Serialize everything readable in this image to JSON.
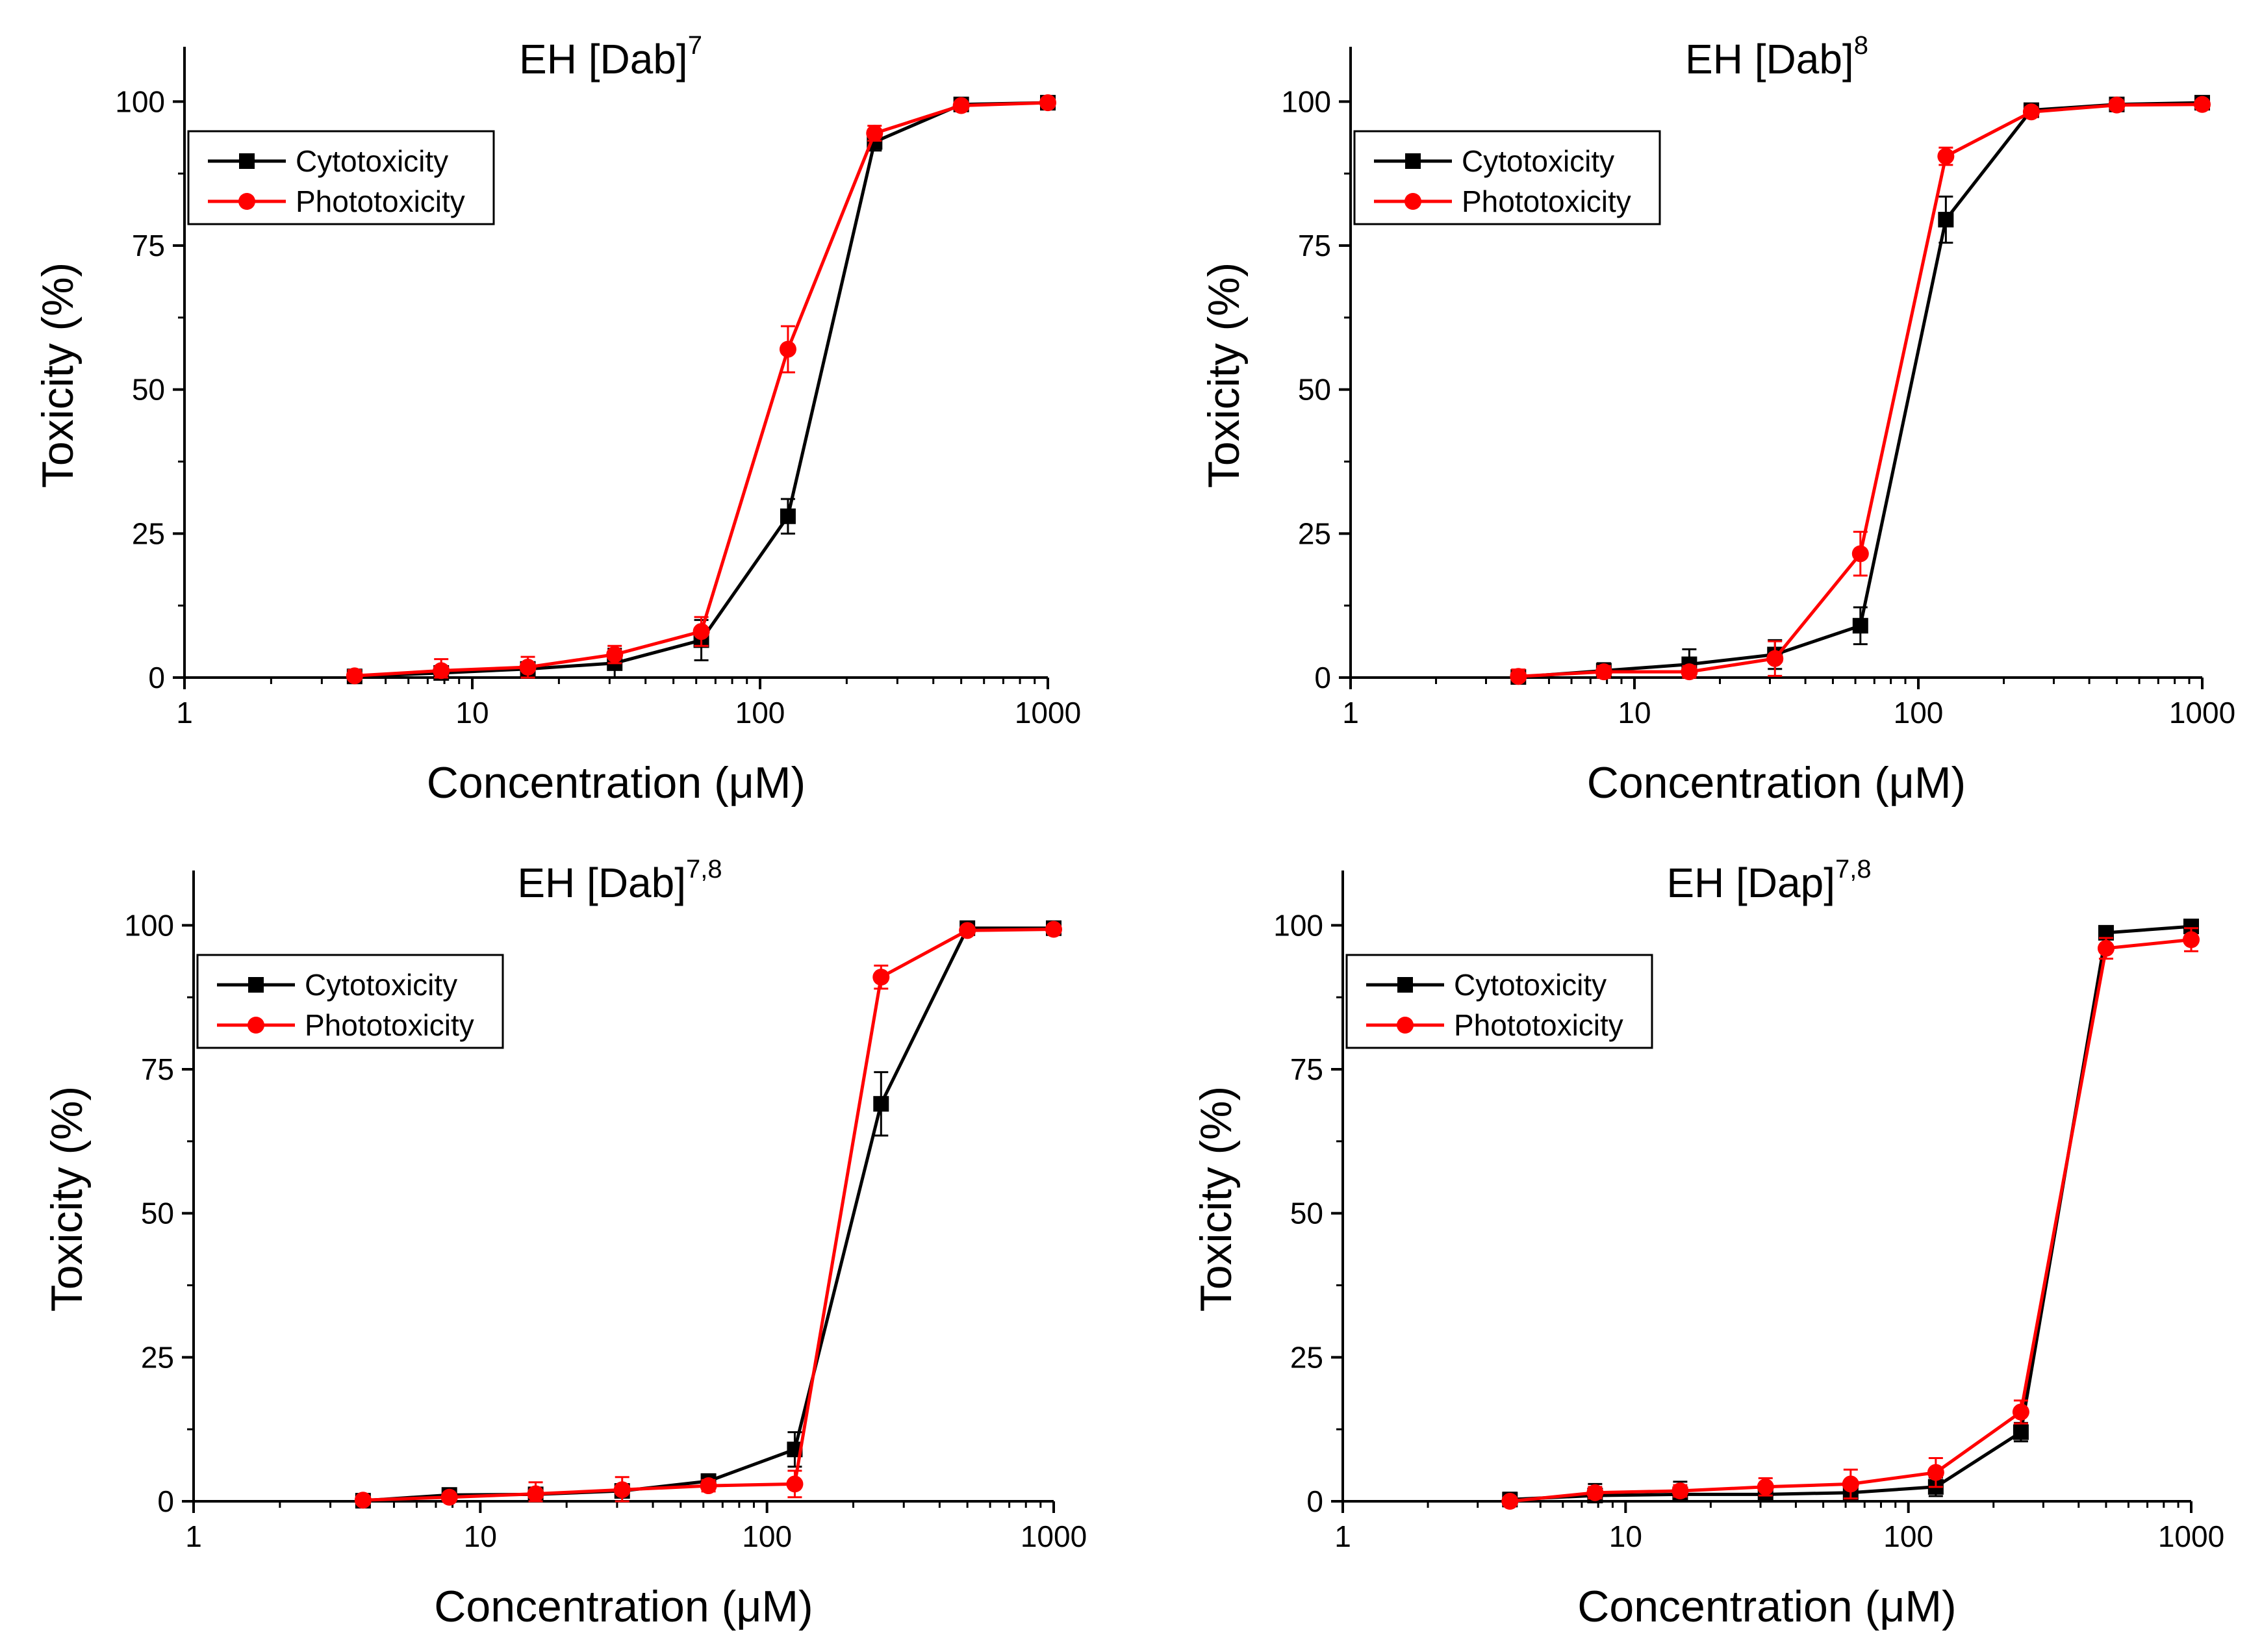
{
  "figure": {
    "colors": {
      "cytotoxicity": "#000000",
      "phototoxicity": "#ff0000",
      "axis": "#000000",
      "background": "#ffffff"
    }
  },
  "chart_data": [
    {
      "type": "line",
      "title_main": "EH [Dab]",
      "title_sup": "7",
      "xlabel": "Concentration (μM)",
      "ylabel": "Toxicity (%)",
      "xscale": "log",
      "xlim": [
        1,
        1000
      ],
      "ylim": [
        0,
        105
      ],
      "xticks": [
        1,
        10,
        100,
        1000
      ],
      "xtick_labels": [
        "1",
        "10",
        "100",
        "1000"
      ],
      "yticks": [
        0,
        25,
        50,
        75,
        100
      ],
      "ytick_labels": [
        "0",
        "25",
        "50",
        "75",
        "100"
      ],
      "grid": false,
      "legend_position": "upper-left",
      "x": [
        3.9,
        7.8,
        15.6,
        31.25,
        62.5,
        125,
        250,
        500,
        1000
      ],
      "series": [
        {
          "name": "Cytotoxicity",
          "marker": "square",
          "color": "#000000",
          "values": [
            0.2,
            0.8,
            1.5,
            2.5,
            6.5,
            28,
            93,
            99.5,
            99.8
          ],
          "errors": [
            0.6,
            0.8,
            0.8,
            2.5,
            3.5,
            3.0,
            1.5,
            0.5,
            0.3
          ]
        },
        {
          "name": "Phototoxicity",
          "marker": "circle",
          "color": "#ff0000",
          "values": [
            0.3,
            1.2,
            1.8,
            4.0,
            8.0,
            57,
            94.5,
            99.3,
            99.8
          ],
          "errors": [
            1.0,
            2.0,
            1.8,
            1.5,
            2.5,
            4.0,
            1.3,
            0.5,
            0.3
          ]
        }
      ]
    },
    {
      "type": "line",
      "title_main": "EH [Dab]",
      "title_sup": "8",
      "xlabel": "Concentration (μM)",
      "ylabel": "Toxicity (%)",
      "xscale": "log",
      "xlim": [
        1,
        1000
      ],
      "ylim": [
        0,
        105
      ],
      "xticks": [
        1,
        10,
        100,
        1000
      ],
      "xtick_labels": [
        "1",
        "10",
        "100",
        "1000"
      ],
      "yticks": [
        0,
        25,
        50,
        75,
        100
      ],
      "ytick_labels": [
        "0",
        "25",
        "50",
        "75",
        "100"
      ],
      "grid": false,
      "legend_position": "upper-left",
      "x": [
        3.9,
        7.8,
        15.6,
        31.25,
        62.5,
        125,
        250,
        500,
        1000
      ],
      "series": [
        {
          "name": "Cytotoxicity",
          "marker": "square",
          "color": "#000000",
          "values": [
            0.1,
            1.2,
            2.3,
            4.0,
            9.0,
            79.5,
            98.5,
            99.5,
            99.8
          ],
          "errors": [
            0.8,
            1.3,
            2.6,
            2.5,
            3.2,
            4.0,
            0.8,
            0.8,
            0.4
          ]
        },
        {
          "name": "Phototoxicity",
          "marker": "circle",
          "color": "#ff0000",
          "values": [
            0.2,
            1.0,
            1.0,
            3.3,
            21.5,
            90.5,
            98.2,
            99.4,
            99.5
          ],
          "errors": [
            1.2,
            1.0,
            1.0,
            3.0,
            3.8,
            1.5,
            0.8,
            0.8,
            0.5
          ]
        }
      ]
    },
    {
      "type": "line",
      "title_main": "EH [Dab]",
      "title_sup": "7,8",
      "xlabel": "Concentration (μM)",
      "ylabel": "Toxicity (%)",
      "xscale": "log",
      "xlim": [
        1,
        1000
      ],
      "ylim": [
        0,
        105
      ],
      "xticks": [
        1,
        10,
        100,
        1000
      ],
      "xtick_labels": [
        "1",
        "10",
        "100",
        "1000"
      ],
      "yticks": [
        0,
        25,
        50,
        75,
        100
      ],
      "ytick_labels": [
        "0",
        "25",
        "50",
        "75",
        "100"
      ],
      "grid": false,
      "legend_position": "upper-left",
      "x": [
        3.9,
        7.8,
        15.6,
        31.25,
        62.5,
        125,
        250,
        500,
        1000
      ],
      "series": [
        {
          "name": "Cytotoxicity",
          "marker": "square",
          "color": "#000000",
          "values": [
            0.1,
            1.1,
            1.2,
            1.8,
            3.5,
            9.0,
            69,
            99.5,
            99.5
          ],
          "errors": [
            0.6,
            0.6,
            1.0,
            1.0,
            1.2,
            3.0,
            5.5,
            0.4,
            0.4
          ]
        },
        {
          "name": "Phototoxicity",
          "marker": "circle",
          "color": "#ff0000",
          "values": [
            0.2,
            0.7,
            1.3,
            2.0,
            2.7,
            3.0,
            91,
            99.1,
            99.3
          ],
          "errors": [
            0.4,
            0.6,
            2.0,
            2.2,
            1.0,
            2.3,
            2.0,
            0.5,
            0.5
          ]
        }
      ]
    },
    {
      "type": "line",
      "title_main": "EH [Dap]",
      "title_sup": "7,8",
      "xlabel": "Concentration (μM)",
      "ylabel": "Toxicity (%)",
      "xscale": "log",
      "xlim": [
        1,
        1000
      ],
      "ylim": [
        0,
        105
      ],
      "xticks": [
        1,
        10,
        100,
        1000
      ],
      "xtick_labels": [
        "1",
        "10",
        "100",
        "1000"
      ],
      "yticks": [
        0,
        25,
        50,
        75,
        100
      ],
      "ytick_labels": [
        "0",
        "25",
        "50",
        "75",
        "100"
      ],
      "grid": false,
      "legend_position": "upper-left",
      "x": [
        3.9,
        7.8,
        15.6,
        31.25,
        62.5,
        125,
        250,
        500,
        1000
      ],
      "series": [
        {
          "name": "Cytotoxicity",
          "marker": "square",
          "color": "#000000",
          "values": [
            0.3,
            1.0,
            1.2,
            1.2,
            1.5,
            2.5,
            12,
            98.7,
            99.8
          ],
          "errors": [
            1.2,
            2.0,
            2.2,
            1.5,
            1.5,
            1.6,
            1.6,
            0.5,
            0.5
          ]
        },
        {
          "name": "Phototoxicity",
          "marker": "circle",
          "color": "#ff0000",
          "values": [
            0.0,
            1.5,
            1.8,
            2.5,
            3.0,
            5.0,
            15.5,
            96,
            97.5
          ],
          "errors": [
            0.6,
            1.0,
            1.0,
            1.5,
            2.5,
            2.5,
            2.0,
            1.8,
            2.0
          ]
        }
      ]
    }
  ]
}
